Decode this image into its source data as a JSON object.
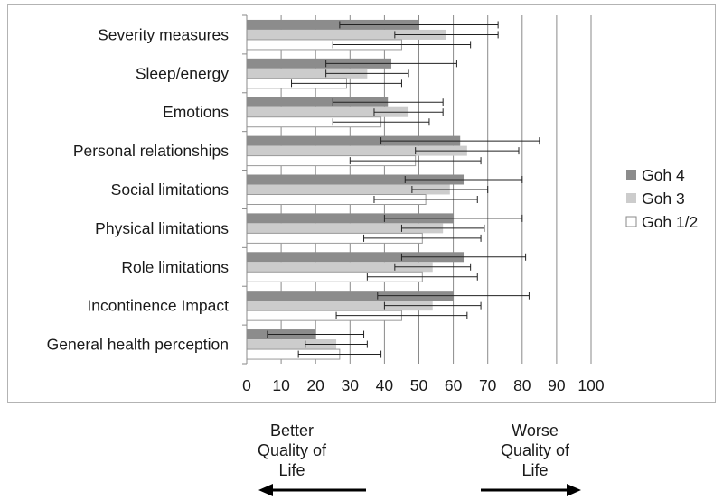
{
  "chart_data": {
    "type": "bar",
    "orientation": "horizontal",
    "categories": [
      "Severity measures",
      "Sleep/energy",
      "Emotions",
      "Personal relationships",
      "Social limitations",
      "Physical limitations",
      "Role limitations",
      "Incontinence Impact",
      "General health perception"
    ],
    "series": [
      {
        "name": "Goh 4",
        "values": [
          50,
          42,
          41,
          62,
          63,
          60,
          63,
          60,
          20
        ],
        "errors": [
          23,
          19,
          16,
          23,
          17,
          20,
          18,
          22,
          14
        ]
      },
      {
        "name": "Goh 3",
        "values": [
          58,
          35,
          47,
          64,
          59,
          57,
          54,
          54,
          26
        ],
        "errors": [
          15,
          12,
          10,
          15,
          11,
          12,
          11,
          14,
          9
        ]
      },
      {
        "name": "Goh 1/2",
        "values": [
          45,
          29,
          39,
          49,
          52,
          51,
          51,
          45,
          27
        ],
        "errors": [
          20,
          16,
          14,
          19,
          15,
          17,
          16,
          19,
          12
        ]
      }
    ],
    "xlim": [
      0,
      100
    ],
    "xticks": [
      "0",
      "10",
      "20",
      "30",
      "40",
      "50",
      "60",
      "70",
      "80",
      "90",
      "100"
    ],
    "grid": true,
    "legend_position": "right",
    "colors": {
      "Goh 4": "#8c8c8c",
      "Goh 3": "#cccccc",
      "Goh 1/2": "#ffffff"
    }
  },
  "annotations": {
    "left": {
      "lines": [
        "Better",
        "Quality of",
        "Life"
      ],
      "arrow": "left"
    },
    "right": {
      "lines": [
        "Worse",
        "Quality of",
        "Life"
      ],
      "arrow": "right"
    }
  }
}
